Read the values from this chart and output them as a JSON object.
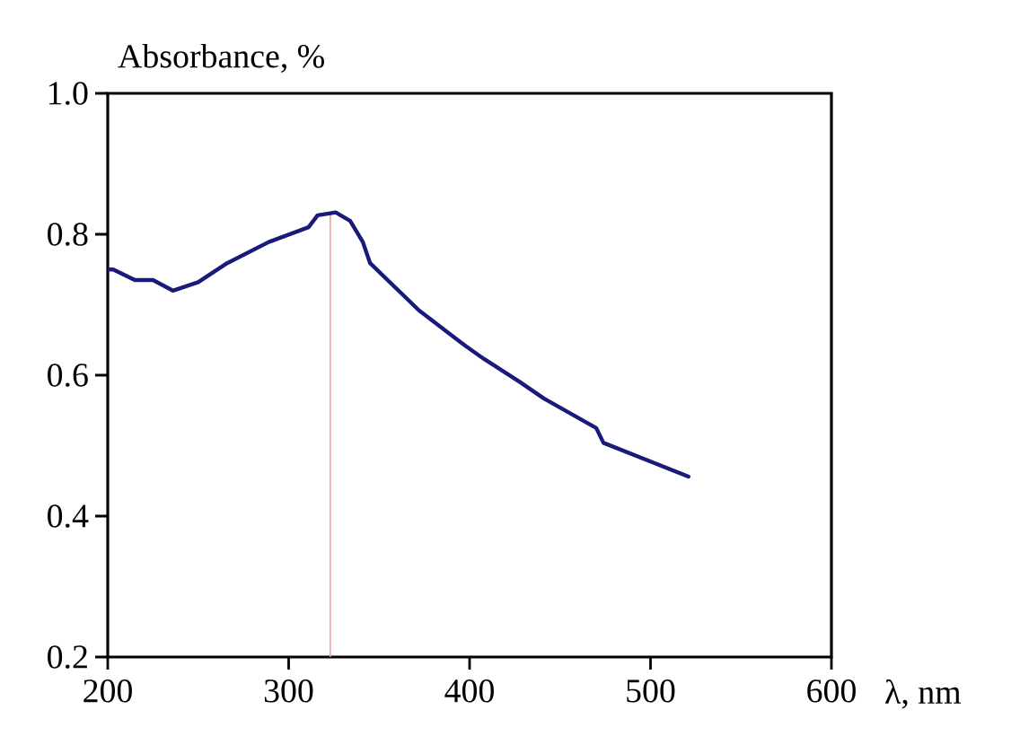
{
  "chart_data": {
    "type": "line",
    "xlabel": "λ, nm",
    "ylabel": "Absorbance, %",
    "xlim": [
      200,
      600
    ],
    "xticks": [
      200,
      300,
      400,
      500,
      600
    ],
    "ylim": [
      0.2,
      1.0
    ],
    "yticks": [
      0.2,
      0.4,
      0.6,
      0.8,
      {
        "value": 1.0,
        "label": "1.0"
      }
    ],
    "series": [
      {
        "color": "#1a1a7a",
        "x": [
          201,
          203,
          215,
          225,
          236,
          250,
          266,
          289,
          311,
          316,
          326,
          334,
          341,
          345,
          372,
          398,
          408,
          428,
          441,
          470,
          474,
          521
        ],
        "values": [
          0.75,
          0.75,
          0.735,
          0.735,
          0.72,
          0.732,
          0.759,
          0.789,
          0.81,
          0.827,
          0.831,
          0.819,
          0.789,
          0.759,
          0.692,
          0.641,
          0.623,
          0.59,
          0.567,
          0.525,
          0.504,
          0.456
        ]
      }
    ],
    "ref_lines": [
      {
        "axis": "x",
        "value": 323,
        "color": "#f4a0a0"
      }
    ]
  }
}
